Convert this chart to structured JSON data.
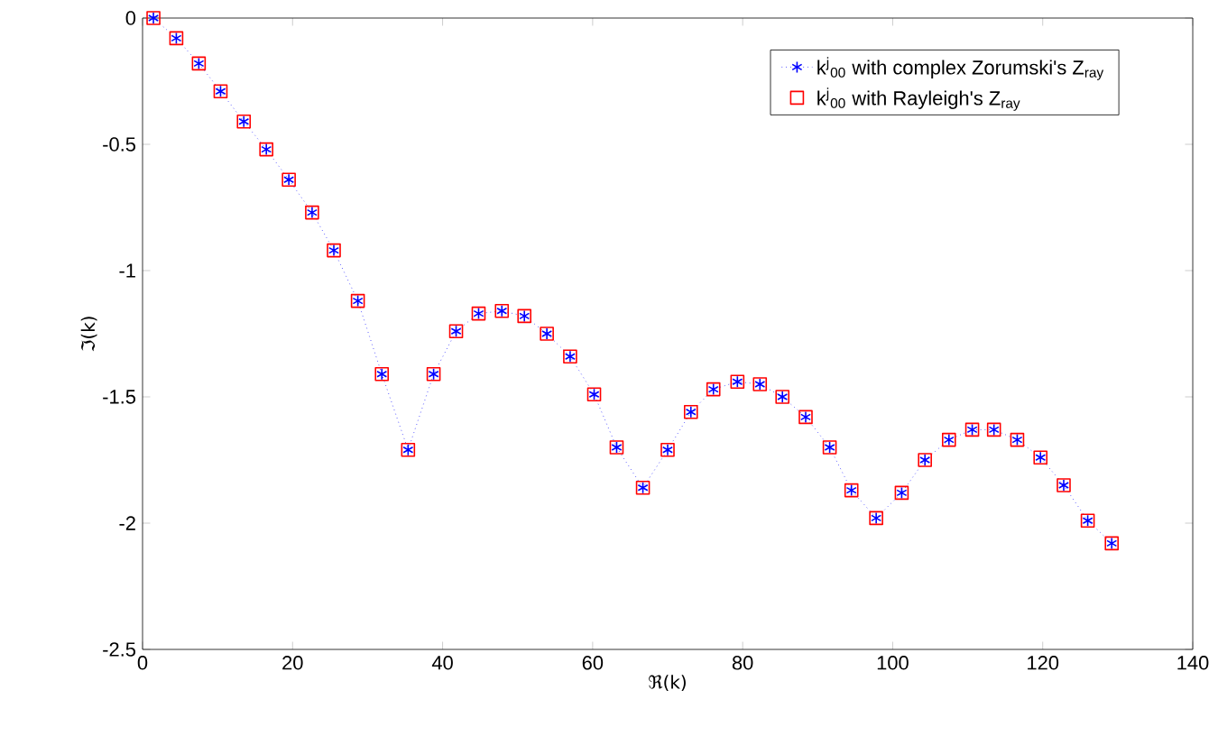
{
  "chart_data": {
    "type": "line",
    "xlabel": "ℜ(k)",
    "ylabel": "ℑ(k)",
    "xlim": [
      0,
      140
    ],
    "ylim": [
      -2.5,
      0
    ],
    "xticks": [
      0,
      20,
      40,
      60,
      80,
      100,
      120,
      140
    ],
    "yticks": [
      -2.5,
      -2,
      -1.5,
      -1,
      -0.5,
      0
    ],
    "x": [
      1.45,
      4.5,
      7.5,
      10.4,
      13.5,
      16.5,
      19.5,
      22.6,
      25.5,
      28.7,
      31.9,
      35.4,
      38.8,
      41.8,
      44.8,
      47.9,
      50.9,
      53.9,
      57.0,
      60.2,
      63.2,
      66.7,
      70.0,
      73.1,
      76.1,
      79.3,
      82.3,
      85.3,
      88.4,
      91.6,
      94.5,
      97.8,
      101.2,
      104.3,
      107.5,
      110.6,
      113.5,
      116.6,
      119.7,
      122.8,
      126.0,
      129.2
    ],
    "series": [
      {
        "name": "k$^{j}$$_{00}$ with complex Zorumski's Z$_{ray}$",
        "color": "#0000ff",
        "marker": "cross",
        "line_style": "dotted",
        "values": [
          0,
          -0.08,
          -0.18,
          -0.29,
          -0.41,
          -0.52,
          -0.64,
          -0.77,
          -0.92,
          -1.12,
          -1.41,
          -1.71,
          -1.41,
          -1.24,
          -1.17,
          -1.16,
          -1.18,
          -1.25,
          -1.34,
          -1.49,
          -1.7,
          -1.86,
          -1.71,
          -1.56,
          -1.47,
          -1.44,
          -1.45,
          -1.5,
          -1.58,
          -1.7,
          -1.87,
          -1.98,
          -1.88,
          -1.75,
          -1.67,
          -1.63,
          -1.63,
          -1.67,
          -1.74,
          -1.85,
          -1.99,
          -2.08
        ]
      },
      {
        "name": "k$^{j}$$_{00}$ with Rayleigh's Z$_{ray}$",
        "type": "scatter",
        "color": "#ff0000",
        "marker": "square",
        "values": [
          0,
          -0.08,
          -0.18,
          -0.29,
          -0.41,
          -0.52,
          -0.64,
          -0.77,
          -0.92,
          -1.12,
          -1.41,
          -1.71,
          -1.41,
          -1.24,
          -1.17,
          -1.16,
          -1.18,
          -1.25,
          -1.34,
          -1.49,
          -1.7,
          -1.86,
          -1.71,
          -1.56,
          -1.47,
          -1.44,
          -1.45,
          -1.5,
          -1.58,
          -1.7,
          -1.87,
          -1.98,
          -1.88,
          -1.75,
          -1.67,
          -1.63,
          -1.63,
          -1.67,
          -1.74,
          -1.85,
          -1.99,
          -2.08
        ]
      }
    ],
    "legend": "top right",
    "grid": false
  }
}
